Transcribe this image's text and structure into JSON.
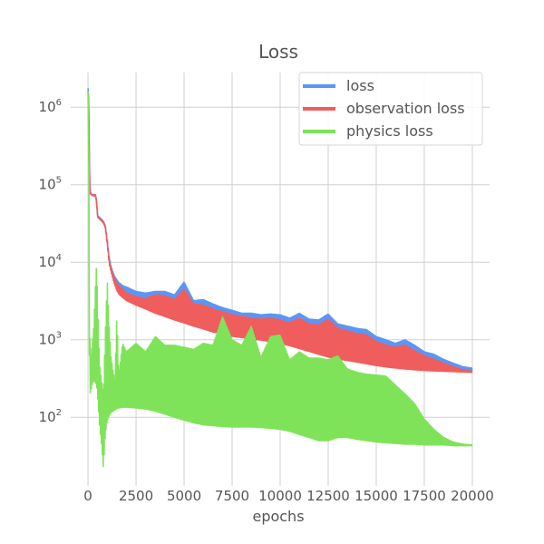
{
  "chart_data": {
    "type": "line",
    "title": "Loss",
    "xlabel": "epochs",
    "ylabel": "",
    "yscale": "log",
    "xlim": [
      -900,
      20900
    ],
    "ylim": [
      13,
      2800000
    ],
    "grid": true,
    "legend_position": "top-right",
    "x_ticks": [
      {
        "value": 0,
        "label": "0"
      },
      {
        "value": 2500,
        "label": "2500"
      },
      {
        "value": 5000,
        "label": "5000"
      },
      {
        "value": 7500,
        "label": "7500"
      },
      {
        "value": 10000,
        "label": "10000"
      },
      {
        "value": 12500,
        "label": "12500"
      },
      {
        "value": 15000,
        "label": "15000"
      },
      {
        "value": 17500,
        "label": "17500"
      },
      {
        "value": 20000,
        "label": "20000"
      }
    ],
    "y_ticks": [
      {
        "value": 100,
        "base": "10",
        "exp": "2"
      },
      {
        "value": 1000,
        "base": "10",
        "exp": "3"
      },
      {
        "value": 10000,
        "base": "10",
        "exp": "4"
      },
      {
        "value": 100000,
        "base": "10",
        "exp": "5"
      },
      {
        "value": 1000000,
        "base": "10",
        "exp": "6"
      }
    ],
    "series": [
      {
        "name": "loss",
        "color": "#5b96f5",
        "x": [
          0,
          20,
          40,
          60,
          80,
          100,
          150,
          200,
          300,
          400,
          450,
          500,
          600,
          700,
          800,
          900,
          1000,
          1100,
          1200,
          1300,
          1400,
          1500,
          1600,
          1800,
          2000,
          2500,
          3000,
          3500,
          4000,
          4500,
          5000,
          5500,
          6000,
          6500,
          7000,
          7500,
          8000,
          8500,
          9000,
          9500,
          10000,
          10500,
          11000,
          11500,
          12000,
          12500,
          13000,
          13500,
          14000,
          14500,
          15000,
          15500,
          16000,
          16500,
          17000,
          17500,
          18000,
          18500,
          19000,
          19500,
          20000
        ],
        "upper": [
          1750000,
          1600000,
          1000000,
          400000,
          150000,
          90000,
          78000,
          75000,
          75000,
          74000,
          60000,
          40000,
          38000,
          36000,
          34000,
          30000,
          20000,
          12000,
          9000,
          7500,
          6500,
          6000,
          5500,
          5000,
          4800,
          4200,
          4000,
          4200,
          4200,
          3800,
          5600,
          3200,
          3300,
          2900,
          2600,
          2400,
          2200,
          2200,
          2100,
          2150,
          2100,
          1900,
          2200,
          1850,
          1800,
          2150,
          1600,
          1500,
          1400,
          1350,
          1100,
          1000,
          900,
          1000,
          850,
          700,
          650,
          560,
          500,
          450,
          430
        ],
        "lower": [
          1700000,
          1500000,
          900000,
          350000,
          140000,
          85000,
          75000,
          74000,
          73000,
          72000,
          58000,
          39000,
          37000,
          35000,
          33000,
          29000,
          18000,
          10000,
          8000,
          6500,
          5200,
          4600,
          4200,
          3900,
          3600,
          3200,
          2900,
          2600,
          2350,
          2100,
          1900,
          1750,
          1600,
          1450,
          1350,
          1250,
          1200,
          1150,
          1100,
          1050,
          1000,
          930,
          850,
          780,
          720,
          660,
          620,
          590,
          560,
          530,
          500,
          480,
          460,
          450,
          440,
          430,
          420,
          415,
          410,
          405,
          400
        ]
      },
      {
        "name": "observation loss",
        "color": "#ef5d5d",
        "x": [
          0,
          20,
          40,
          60,
          80,
          100,
          150,
          200,
          300,
          400,
          450,
          500,
          600,
          700,
          800,
          900,
          1000,
          1100,
          1200,
          1300,
          1400,
          1500,
          1600,
          1800,
          2000,
          2500,
          3000,
          3500,
          4000,
          4500,
          5000,
          5500,
          6000,
          6500,
          7000,
          7500,
          8000,
          8500,
          9000,
          9500,
          10000,
          10500,
          11000,
          11500,
          12000,
          12500,
          13000,
          13500,
          14000,
          14500,
          15000,
          15500,
          16000,
          16500,
          17000,
          17500,
          18000,
          18500,
          19000,
          19500,
          20000
        ],
        "upper": [
          1600000,
          1450000,
          850000,
          330000,
          120000,
          80000,
          76000,
          74000,
          74000,
          73000,
          58000,
          39000,
          37000,
          35000,
          33000,
          29000,
          19000,
          11000,
          8500,
          7000,
          6000,
          5500,
          5000,
          4500,
          4000,
          3600,
          3400,
          3800,
          3700,
          3300,
          4500,
          2900,
          2800,
          2500,
          2300,
          2100,
          2000,
          1900,
          1850,
          1900,
          1800,
          1650,
          1900,
          1600,
          1550,
          1850,
          1400,
          1300,
          1200,
          1150,
          950,
          850,
          800,
          850,
          720,
          620,
          560,
          500,
          450,
          410,
          390
        ],
        "lower": [
          1550000,
          1400000,
          800000,
          300000,
          110000,
          78000,
          74000,
          73000,
          72000,
          71000,
          56000,
          38000,
          36000,
          34000,
          32000,
          28000,
          17000,
          9500,
          7500,
          6000,
          5000,
          4300,
          3900,
          3500,
          3200,
          2800,
          2500,
          2200,
          2000,
          1800,
          1650,
          1500,
          1380,
          1260,
          1180,
          1110,
          1070,
          1030,
          990,
          950,
          900,
          840,
          770,
          710,
          650,
          600,
          565,
          540,
          515,
          490,
          465,
          447,
          432,
          420,
          410,
          402,
          396,
          392,
          388,
          384,
          380
        ]
      },
      {
        "name": "physics loss",
        "color": "#7fe35a",
        "x": [
          0,
          20,
          40,
          60,
          80,
          100,
          150,
          200,
          300,
          400,
          450,
          500,
          600,
          700,
          800,
          900,
          1000,
          1100,
          1200,
          1300,
          1400,
          1500,
          1600,
          1800,
          2000,
          2500,
          3000,
          3500,
          4000,
          4500,
          5000,
          5500,
          6000,
          6500,
          7000,
          7500,
          8000,
          8500,
          9000,
          9500,
          10000,
          10500,
          11000,
          11500,
          12000,
          12500,
          13000,
          13500,
          14000,
          14500,
          15000,
          15500,
          16000,
          16500,
          17000,
          17500,
          18000,
          18500,
          19000,
          19500,
          20000
        ],
        "upper": [
          1600000,
          1000000,
          250000,
          50000,
          3000,
          800,
          600,
          800,
          1500,
          6000,
          10000,
          3000,
          500,
          300,
          200,
          1200,
          6000,
          1500,
          600,
          400,
          300,
          2200,
          350,
          900,
          700,
          900,
          700,
          1100,
          850,
          850,
          800,
          750,
          900,
          850,
          2000,
          1000,
          850,
          1500,
          600,
          1100,
          1150,
          550,
          700,
          580,
          580,
          550,
          620,
          420,
          380,
          360,
          350,
          340,
          260,
          200,
          150,
          95,
          70,
          55,
          48,
          45,
          44
        ],
        "lower": [
          1400000,
          500000,
          100000,
          2000,
          300,
          200,
          220,
          260,
          300,
          280,
          250,
          180,
          80,
          45,
          22,
          60,
          90,
          105,
          115,
          120,
          125,
          130,
          132,
          135,
          135,
          132,
          128,
          120,
          110,
          100,
          92,
          85,
          80,
          78,
          76,
          75,
          75,
          75,
          74,
          72,
          70,
          66,
          60,
          55,
          50,
          50,
          55,
          55,
          52,
          50,
          48,
          47,
          46,
          45,
          45,
          44,
          44,
          44,
          43,
          43,
          43
        ]
      }
    ]
  }
}
